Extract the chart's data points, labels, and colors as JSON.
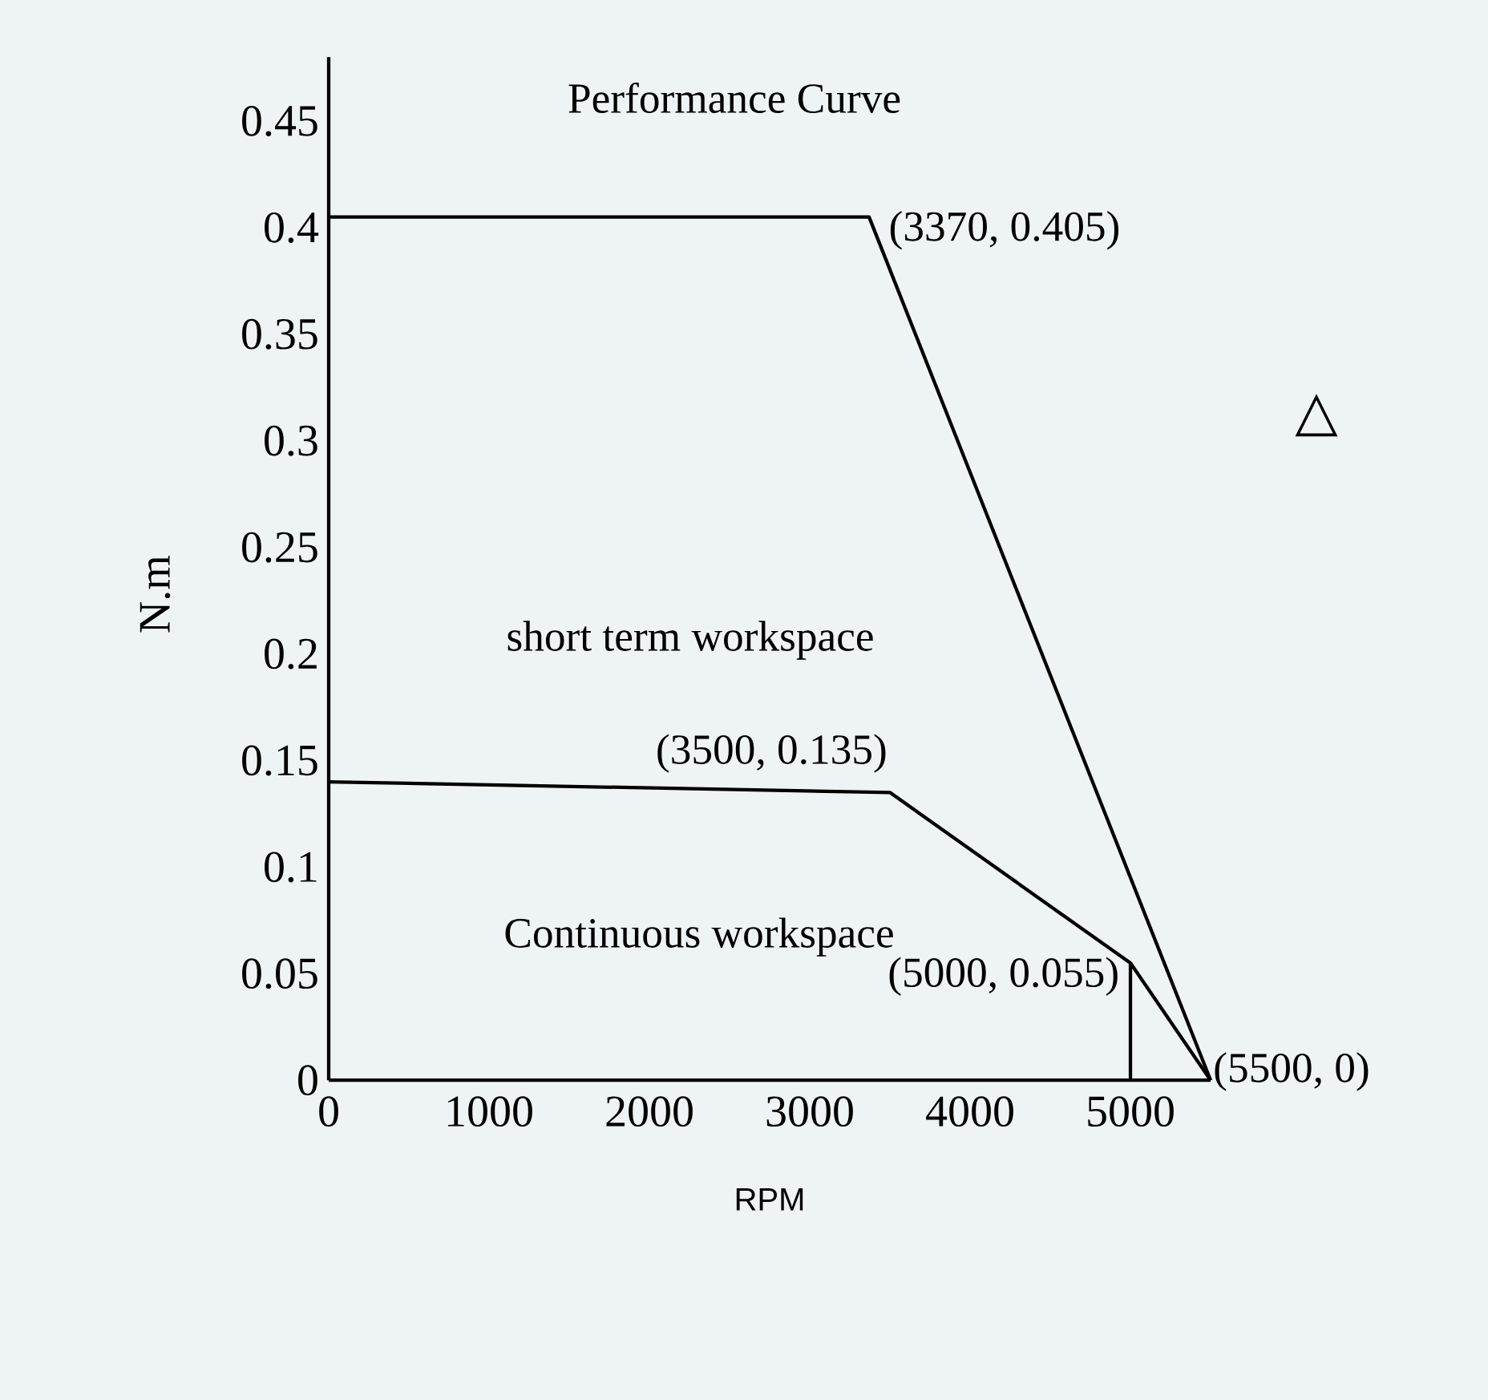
{
  "chart_data": {
    "type": "line",
    "title": "Performance Curve",
    "xlabel": "RPM",
    "ylabel": "N.m",
    "series": [
      {
        "color": "#000000",
        "x": [
          0,
          3370,
          5500
        ],
        "values": [
          0.405,
          0.405,
          0
        ]
      },
      {
        "color": "#000000",
        "x": [
          0,
          3500,
          5000,
          5500
        ],
        "values": [
          0.14,
          0.135,
          0.055,
          0
        ]
      },
      {
        "color": "#000000",
        "x": [
          5000,
          5000
        ],
        "values": [
          0,
          0.055
        ]
      }
    ],
    "xlim": [
      0,
      5500
    ],
    "ylim": [
      0,
      0.48
    ],
    "xticks": [
      0,
      1000,
      2000,
      3000,
      4000,
      5000
    ],
    "yticks": [
      0,
      0.05,
      0.1,
      0.15,
      0.2,
      0.25,
      0.3,
      0.35,
      0.4,
      0.45
    ],
    "grid": false,
    "marker": "none",
    "line_style": "solid",
    "annotations": [
      {
        "text": "(3370, 0.405)",
        "x": 3370,
        "y": 0.405
      },
      {
        "text": "(3500, 0.135)",
        "x": 3500,
        "y": 0.135
      },
      {
        "text": "(5000, 0.055)",
        "x": 5000,
        "y": 0.055
      },
      {
        "text": "(5500, 0)",
        "x": 5500,
        "y": 0
      },
      "short term workspace",
      "Continuous workspace",
      "△"
    ]
  }
}
